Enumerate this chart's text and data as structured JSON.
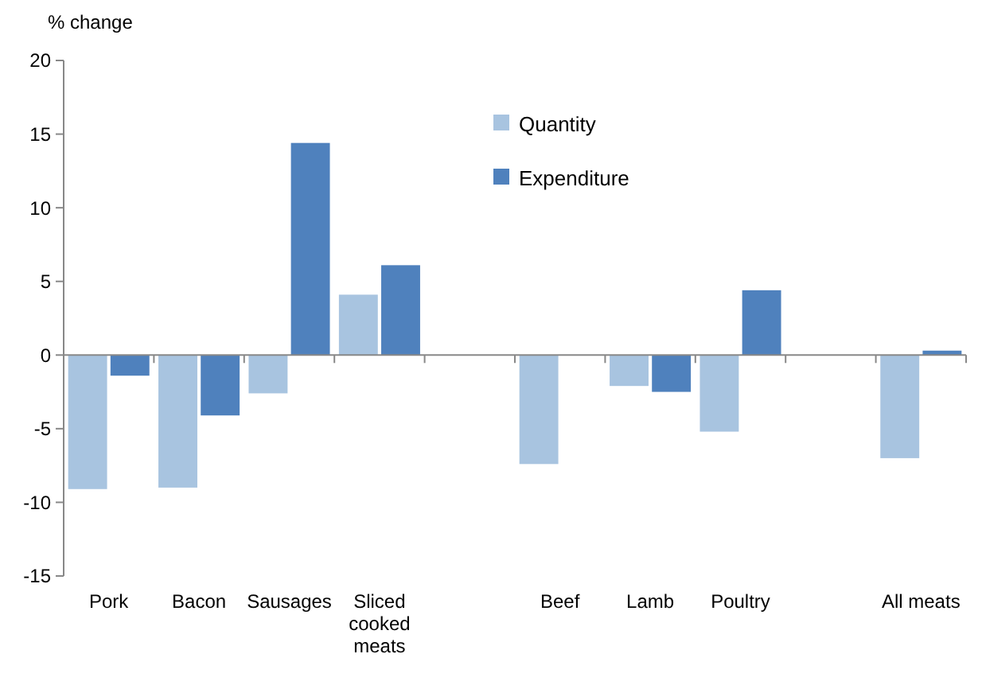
{
  "chart_data": {
    "type": "bar",
    "ylabel": "% change",
    "categories": [
      "Pork",
      "Bacon",
      "Sausages",
      "Sliced cooked meats",
      null,
      "Beef",
      "Lamb",
      "Poultry",
      null,
      "All meats"
    ],
    "series": [
      {
        "name": "Quantity",
        "color": "#a8c4e0",
        "values": [
          -9.1,
          -9.0,
          -2.6,
          4.1,
          null,
          -7.4,
          -2.1,
          -5.2,
          null,
          -7.0
        ]
      },
      {
        "name": "Expenditure",
        "color": "#4f81bd",
        "values": [
          -1.4,
          -4.1,
          14.4,
          6.1,
          null,
          null,
          -2.5,
          4.4,
          null,
          0.3
        ]
      }
    ],
    "ylim": [
      -15,
      20
    ],
    "yticks": [
      -15,
      -10,
      -5,
      0,
      5,
      10,
      15,
      20
    ],
    "legend": "top"
  }
}
